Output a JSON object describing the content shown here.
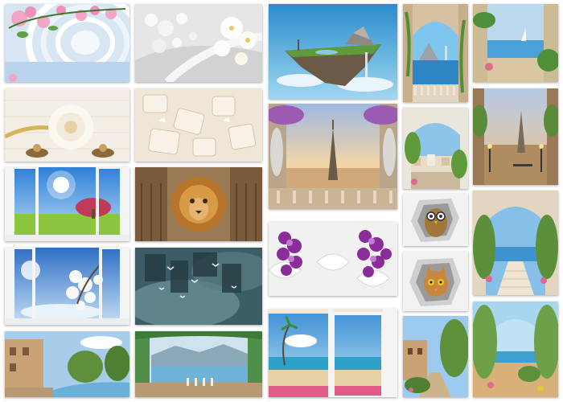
{
  "gallery": {
    "tiles": [
      {
        "id": "roses-tunnel",
        "colors": [
          "#cfe0f0",
          "#e8eff8",
          "#f3a8c8"
        ]
      },
      {
        "id": "white-spheres-orchid",
        "colors": [
          "#d8d8d8",
          "#f4f4f4",
          "#bdbdbd"
        ]
      },
      {
        "id": "floating-island",
        "colors": [
          "#3aa3d8",
          "#8fd0ef",
          "#5d8f3a"
        ]
      },
      {
        "id": "arch-sea",
        "colors": [
          "#cfb79a",
          "#7cc6ef",
          "#2f86c4"
        ]
      },
      {
        "id": "terrace-sea",
        "colors": [
          "#c6ddea",
          "#8fc7e6",
          "#d9c7a3"
        ]
      },
      {
        "id": "white-peony",
        "colors": [
          "#f5f1ea",
          "#e8dccb",
          "#c9a25a"
        ]
      },
      {
        "id": "3d-cream-shapes",
        "colors": [
          "#efe6d8",
          "#f7f1e7",
          "#d8c6ad"
        ]
      },
      {
        "id": "eiffel-balcony",
        "colors": [
          "#b7c9e6",
          "#f3c98f",
          "#c7b39a"
        ]
      },
      {
        "id": "arch-town",
        "colors": [
          "#e9e4da",
          "#8fc3ea",
          "#6a9b4b"
        ]
      },
      {
        "id": "eiffel-terrace",
        "colors": [
          "#c0d1e6",
          "#f1c48a",
          "#7a5a3d"
        ]
      },
      {
        "id": "window-meadow",
        "colors": [
          "#3f8fe0",
          "#8cc63f",
          "#f2f2f2"
        ]
      },
      {
        "id": "lion-wall",
        "colors": [
          "#8b6a46",
          "#c9a77a",
          "#d6892e"
        ]
      },
      {
        "id": "purple-orchids",
        "colors": [
          "#f2f2f2",
          "#8a2d9a",
          "#c679d8"
        ]
      },
      {
        "id": "cat-hole-owl",
        "colors": [
          "#f0f0f0",
          "#c8c8c8",
          "#8b6a3a"
        ]
      },
      {
        "id": "arch-stairs",
        "colors": [
          "#e6dccb",
          "#7fb8e6",
          "#5b8f3a"
        ]
      },
      {
        "id": "window-blossom",
        "colors": [
          "#3a7cc9",
          "#bcd7f0",
          "#f7f7f7"
        ]
      },
      {
        "id": "dark-teal-birds",
        "colors": [
          "#2f4d55",
          "#6a8f96",
          "#a9c2c6"
        ]
      },
      {
        "id": "cat-hole-kitten",
        "colors": [
          "#f0f0f0",
          "#c8c8c8",
          "#c98a3a"
        ]
      },
      {
        "id": "village-canal",
        "colors": [
          "#9fc9ea",
          "#caa276",
          "#5e8f3a"
        ]
      },
      {
        "id": "greenhouse-lake",
        "colors": [
          "#6fb2d8",
          "#4f8f4a",
          "#c9dbe6"
        ]
      },
      {
        "id": "window-beach",
        "colors": [
          "#5ab0e0",
          "#e6d2a6",
          "#e05a8a"
        ]
      },
      {
        "id": "garden-path-town",
        "colors": [
          "#8cc1ea",
          "#6a9b3a",
          "#b79a74"
        ]
      },
      {
        "id": "garden-arch-lake",
        "colors": [
          "#9fd3ee",
          "#6ea04a",
          "#d8b07a"
        ]
      }
    ]
  }
}
